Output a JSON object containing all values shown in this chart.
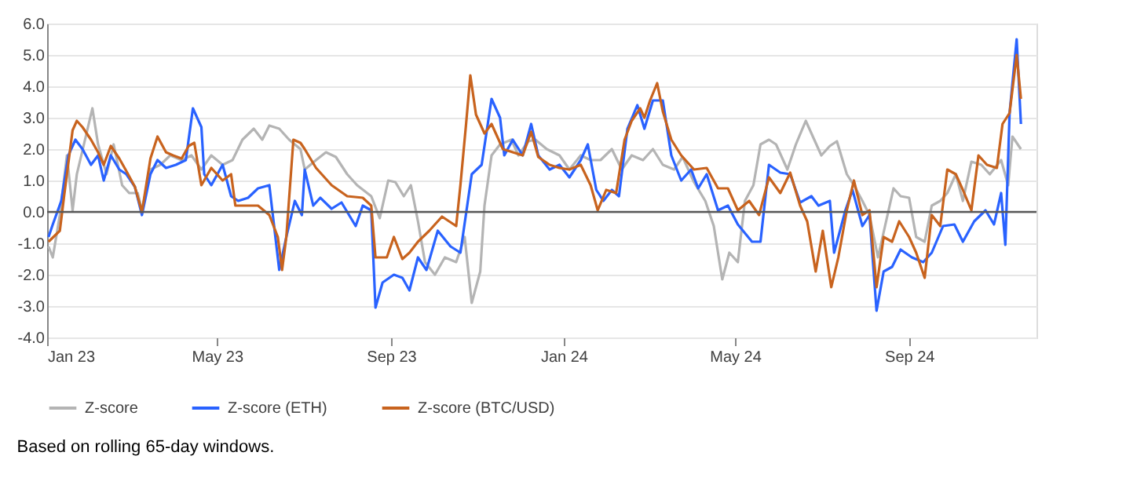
{
  "chart_data": {
    "type": "line",
    "annotations": [
      "Based on rolling 65-day windows."
    ],
    "xlim": [
      "2023-01-01",
      "2024-11-30"
    ],
    "xticks": [
      {
        "value": "2023-01-01",
        "label": "Jan 23"
      },
      {
        "value": "2023-05-01",
        "label": "May 23"
      },
      {
        "value": "2023-09-01",
        "label": "Sep 23"
      },
      {
        "value": "2024-01-01",
        "label": "Jan 24"
      },
      {
        "value": "2024-05-01",
        "label": "May 24"
      },
      {
        "value": "2024-09-01",
        "label": "Sep 24"
      }
    ],
    "ylim": [
      -4,
      6
    ],
    "yticks": [
      {
        "value": -4,
        "label": "-4.0"
      },
      {
        "value": -3,
        "label": "-3.0"
      },
      {
        "value": -2,
        "label": "-2.0"
      },
      {
        "value": -1,
        "label": "-1.0"
      },
      {
        "value": 0,
        "label": "0.0"
      },
      {
        "value": 1,
        "label": "1.0"
      },
      {
        "value": 2,
        "label": "2.0"
      },
      {
        "value": 3,
        "label": "3.0"
      },
      {
        "value": 4,
        "label": "4.0"
      },
      {
        "value": 5,
        "label": "5.0"
      },
      {
        "value": 6,
        "label": "6.0"
      }
    ],
    "grid": "y",
    "legend": "bottom",
    "ref_lines": [
      {
        "axis": "y",
        "value": 0,
        "color": "#595959"
      }
    ],
    "series": [
      {
        "name": "Z-score",
        "color": "#b4b4b4",
        "x": [
          "2023-01-02",
          "2023-01-05",
          "2023-01-10",
          "2023-01-15",
          "2023-01-19",
          "2023-01-22",
          "2023-01-27",
          "2023-02-02",
          "2023-02-06",
          "2023-02-12",
          "2023-02-17",
          "2023-02-23",
          "2023-02-28",
          "2023-03-06",
          "2023-03-09",
          "2023-03-15",
          "2023-03-22",
          "2023-03-29",
          "2023-04-06",
          "2023-04-13",
          "2023-04-20",
          "2023-04-27",
          "2023-05-05",
          "2023-05-12",
          "2023-05-19",
          "2023-05-27",
          "2023-06-02",
          "2023-06-07",
          "2023-06-14",
          "2023-06-21",
          "2023-06-29",
          "2023-07-02",
          "2023-07-10",
          "2023-07-17",
          "2023-07-24",
          "2023-08-01",
          "2023-08-08",
          "2023-08-18",
          "2023-08-24",
          "2023-08-30",
          "2023-09-04",
          "2023-09-10",
          "2023-09-15",
          "2023-09-20",
          "2023-09-25",
          "2023-10-02",
          "2023-10-09",
          "2023-10-17",
          "2023-10-23",
          "2023-10-28",
          "2023-11-03",
          "2023-11-06",
          "2023-11-11",
          "2023-11-17",
          "2023-11-25",
          "2023-11-30",
          "2023-12-07",
          "2023-12-12",
          "2023-12-20",
          "2023-12-29",
          "2024-01-05",
          "2024-01-13",
          "2024-01-20",
          "2024-01-27",
          "2024-02-04",
          "2024-02-11",
          "2024-02-18",
          "2024-02-26",
          "2024-03-04",
          "2024-03-11",
          "2024-03-19",
          "2024-03-25",
          "2024-04-02",
          "2024-04-10",
          "2024-04-16",
          "2024-04-22",
          "2024-04-27",
          "2024-05-03",
          "2024-05-08",
          "2024-05-14",
          "2024-05-19",
          "2024-05-25",
          "2024-05-30",
          "2024-06-07",
          "2024-06-13",
          "2024-06-20",
          "2024-06-26",
          "2024-07-01",
          "2024-07-07",
          "2024-07-12",
          "2024-07-19",
          "2024-07-24",
          "2024-07-30",
          "2024-08-04",
          "2024-08-10",
          "2024-08-15",
          "2024-08-21",
          "2024-08-26",
          "2024-09-01",
          "2024-09-06",
          "2024-09-12",
          "2024-09-17",
          "2024-09-23",
          "2024-09-28",
          "2024-10-04",
          "2024-10-09",
          "2024-10-15",
          "2024-10-22",
          "2024-10-28",
          "2024-11-05",
          "2024-11-10",
          "2024-11-13",
          "2024-11-19"
        ],
        "values": [
          -1.1,
          -1.45,
          -0.1,
          1.8,
          0.05,
          1.2,
          2.15,
          3.3,
          2.15,
          1.2,
          2.15,
          0.85,
          0.6,
          0.6,
          0.05,
          1.35,
          1.5,
          1.8,
          1.65,
          1.8,
          1.35,
          1.8,
          1.5,
          1.65,
          2.3,
          2.65,
          2.3,
          2.75,
          2.65,
          2.3,
          2.0,
          1.35,
          1.65,
          1.9,
          1.75,
          1.2,
          0.85,
          0.5,
          -0.2,
          1.0,
          0.95,
          0.5,
          0.85,
          -0.3,
          -1.6,
          -2.0,
          -1.45,
          -1.6,
          -0.8,
          -2.9,
          -1.9,
          0.2,
          1.8,
          2.15,
          2.3,
          1.8,
          2.25,
          2.3,
          2.0,
          1.8,
          1.35,
          1.8,
          1.65,
          1.65,
          2.0,
          1.35,
          1.8,
          1.65,
          2.0,
          1.5,
          1.35,
          1.75,
          0.95,
          0.35,
          -0.45,
          -2.15,
          -1.3,
          -1.6,
          0.35,
          0.85,
          2.15,
          2.3,
          2.15,
          1.35,
          2.15,
          2.9,
          2.3,
          1.8,
          2.1,
          2.25,
          1.2,
          0.85,
          0.35,
          -0.1,
          -1.45,
          -0.45,
          0.75,
          0.5,
          0.45,
          -0.8,
          -0.95,
          0.2,
          0.35,
          0.6,
          1.2,
          0.35,
          1.6,
          1.5,
          1.2,
          1.65,
          0.85,
          2.4,
          2.0
        ]
      },
      {
        "name": "Z-score (ETH)",
        "color": "#2962ff",
        "x": [
          "2023-01-02",
          "2023-01-05",
          "2023-01-11",
          "2023-01-16",
          "2023-01-21",
          "2023-01-26",
          "2023-02-01",
          "2023-02-06",
          "2023-02-10",
          "2023-02-15",
          "2023-02-21",
          "2023-02-26",
          "2023-03-04",
          "2023-03-09",
          "2023-03-15",
          "2023-03-20",
          "2023-03-26",
          "2023-04-02",
          "2023-04-09",
          "2023-04-14",
          "2023-04-20",
          "2023-04-22",
          "2023-04-27",
          "2023-05-05",
          "2023-05-11",
          "2023-05-16",
          "2023-05-23",
          "2023-05-30",
          "2023-06-07",
          "2023-06-14",
          "2023-06-19",
          "2023-06-25",
          "2023-06-30",
          "2023-07-02",
          "2023-07-08",
          "2023-07-13",
          "2023-07-21",
          "2023-07-28",
          "2023-08-07",
          "2023-08-12",
          "2023-08-18",
          "2023-08-21",
          "2023-08-26",
          "2023-09-03",
          "2023-09-09",
          "2023-09-14",
          "2023-09-20",
          "2023-09-26",
          "2023-10-04",
          "2023-10-13",
          "2023-10-20",
          "2023-10-28",
          "2023-11-04",
          "2023-11-11",
          "2023-11-17",
          "2023-11-20",
          "2023-11-26",
          "2023-12-03",
          "2023-12-09",
          "2023-12-14",
          "2023-12-22",
          "2023-12-29",
          "2024-01-05",
          "2024-01-13",
          "2024-01-18",
          "2024-01-24",
          "2024-01-29",
          "2024-02-04",
          "2024-02-09",
          "2024-02-15",
          "2024-02-22",
          "2024-02-27",
          "2024-03-04",
          "2024-03-11",
          "2024-03-17",
          "2024-03-24",
          "2024-03-31",
          "2024-04-05",
          "2024-04-11",
          "2024-04-19",
          "2024-04-26",
          "2024-05-03",
          "2024-05-13",
          "2024-05-19",
          "2024-05-25",
          "2024-06-02",
          "2024-06-09",
          "2024-06-16",
          "2024-06-24",
          "2024-06-29",
          "2024-07-07",
          "2024-07-10",
          "2024-07-18",
          "2024-07-23",
          "2024-07-30",
          "2024-08-04",
          "2024-08-09",
          "2024-08-14",
          "2024-08-20",
          "2024-08-26",
          "2024-09-03",
          "2024-09-11",
          "2024-09-17",
          "2024-09-25",
          "2024-10-03",
          "2024-10-09",
          "2024-10-17",
          "2024-10-25",
          "2024-10-31",
          "2024-11-05",
          "2024-11-08",
          "2024-11-11",
          "2024-11-16",
          "2024-11-19"
        ],
        "values": [
          -0.8,
          -0.4,
          0.35,
          1.8,
          2.3,
          2.0,
          1.5,
          1.8,
          1.0,
          1.8,
          1.35,
          1.2,
          0.8,
          -0.1,
          1.2,
          1.65,
          1.4,
          1.5,
          1.65,
          3.3,
          2.7,
          1.2,
          0.85,
          1.5,
          0.5,
          0.35,
          0.45,
          0.75,
          0.85,
          -1.85,
          -0.8,
          0.35,
          -0.1,
          1.35,
          0.2,
          0.45,
          0.1,
          0.3,
          -0.45,
          0.2,
          0.05,
          -3.05,
          -2.25,
          -2.0,
          -2.1,
          -2.5,
          -1.45,
          -1.85,
          -0.6,
          -1.1,
          -1.3,
          1.2,
          1.5,
          3.6,
          3.0,
          1.8,
          2.3,
          1.8,
          2.8,
          1.8,
          1.35,
          1.5,
          1.1,
          1.65,
          2.15,
          0.7,
          0.35,
          0.7,
          0.5,
          2.65,
          3.4,
          2.65,
          3.55,
          3.55,
          1.8,
          1.0,
          1.35,
          0.75,
          1.2,
          0.05,
          0.2,
          -0.4,
          -0.95,
          -0.95,
          1.5,
          1.25,
          1.2,
          0.3,
          0.5,
          0.2,
          0.35,
          -1.3,
          0.05,
          0.7,
          -0.45,
          -0.1,
          -3.15,
          -1.9,
          -1.75,
          -1.2,
          -1.45,
          -1.6,
          -1.3,
          -0.45,
          -0.4,
          -0.95,
          -0.3,
          0.05,
          -0.4,
          0.6,
          -1.05,
          3.15,
          5.5,
          2.8
        ]
      },
      {
        "name": "Z-score (BTC/USD)",
        "color": "#c8631e",
        "x": [
          "2023-01-02",
          "2023-01-10",
          "2023-01-13",
          "2023-01-19",
          "2023-01-22",
          "2023-01-26",
          "2023-02-01",
          "2023-02-06",
          "2023-02-10",
          "2023-02-15",
          "2023-02-21",
          "2023-02-26",
          "2023-03-04",
          "2023-03-09",
          "2023-03-15",
          "2023-03-20",
          "2023-03-26",
          "2023-03-31",
          "2023-04-06",
          "2023-04-11",
          "2023-04-15",
          "2023-04-20",
          "2023-04-27",
          "2023-05-05",
          "2023-05-11",
          "2023-05-14",
          "2023-05-22",
          "2023-05-30",
          "2023-06-07",
          "2023-06-13",
          "2023-06-16",
          "2023-06-19",
          "2023-06-24",
          "2023-06-29",
          "2023-07-02",
          "2023-07-10",
          "2023-07-21",
          "2023-08-01",
          "2023-08-12",
          "2023-08-18",
          "2023-08-21",
          "2023-08-29",
          "2023-09-03",
          "2023-09-09",
          "2023-09-14",
          "2023-09-20",
          "2023-09-28",
          "2023-10-07",
          "2023-10-17",
          "2023-10-20",
          "2023-10-24",
          "2023-10-27",
          "2023-10-31",
          "2023-11-06",
          "2023-11-11",
          "2023-11-19",
          "2023-11-26",
          "2023-12-03",
          "2023-12-09",
          "2023-12-14",
          "2023-12-22",
          "2023-12-29",
          "2024-01-05",
          "2024-01-13",
          "2024-01-20",
          "2024-01-25",
          "2024-01-31",
          "2024-02-07",
          "2024-02-13",
          "2024-02-18",
          "2024-02-24",
          "2024-02-27",
          "2024-03-02",
          "2024-03-07",
          "2024-03-11",
          "2024-03-17",
          "2024-03-24",
          "2024-04-02",
          "2024-04-11",
          "2024-04-19",
          "2024-04-26",
          "2024-05-03",
          "2024-05-11",
          "2024-05-18",
          "2024-05-25",
          "2024-06-02",
          "2024-06-09",
          "2024-06-16",
          "2024-06-21",
          "2024-06-27",
          "2024-07-02",
          "2024-07-08",
          "2024-07-13",
          "2024-07-19",
          "2024-07-24",
          "2024-07-30",
          "2024-08-04",
          "2024-08-09",
          "2024-08-14",
          "2024-08-20",
          "2024-08-25",
          "2024-09-01",
          "2024-09-06",
          "2024-09-12",
          "2024-09-17",
          "2024-09-23",
          "2024-09-28",
          "2024-10-04",
          "2024-10-09",
          "2024-10-15",
          "2024-10-20",
          "2024-10-26",
          "2024-11-02",
          "2024-11-06",
          "2024-11-11",
          "2024-11-16",
          "2024-11-19"
        ],
        "values": [
          -0.95,
          -0.6,
          0.5,
          2.6,
          2.9,
          2.7,
          2.3,
          1.9,
          1.5,
          2.1,
          1.7,
          1.3,
          0.8,
          0.0,
          1.7,
          2.4,
          1.9,
          1.8,
          1.7,
          2.1,
          2.2,
          0.85,
          1.4,
          1.0,
          1.2,
          0.2,
          0.2,
          0.2,
          -0.1,
          -0.8,
          -1.85,
          -0.8,
          2.3,
          2.2,
          2.0,
          1.4,
          0.85,
          0.5,
          0.45,
          0.2,
          -1.45,
          -1.45,
          -0.8,
          -1.5,
          -1.3,
          -0.95,
          -0.6,
          -0.15,
          -0.45,
          0.85,
          2.8,
          4.35,
          3.1,
          2.5,
          2.8,
          2.0,
          1.9,
          1.8,
          2.55,
          1.75,
          1.5,
          1.4,
          1.35,
          1.5,
          0.85,
          0.05,
          0.7,
          0.6,
          2.3,
          2.9,
          3.3,
          3.0,
          3.55,
          4.1,
          3.2,
          2.3,
          1.8,
          1.35,
          1.4,
          0.75,
          0.75,
          0.05,
          0.35,
          -0.1,
          1.1,
          0.6,
          1.25,
          0.2,
          -0.3,
          -1.9,
          -0.6,
          -2.4,
          -1.45,
          0.05,
          1.0,
          -0.1,
          0.05,
          -2.4,
          -0.8,
          -0.95,
          -0.3,
          -0.8,
          -1.3,
          -2.1,
          -0.1,
          -0.45,
          1.35,
          1.2,
          0.7,
          0.05,
          1.8,
          1.5,
          1.4,
          2.8,
          3.15,
          5.0,
          3.6
        ]
      }
    ]
  }
}
